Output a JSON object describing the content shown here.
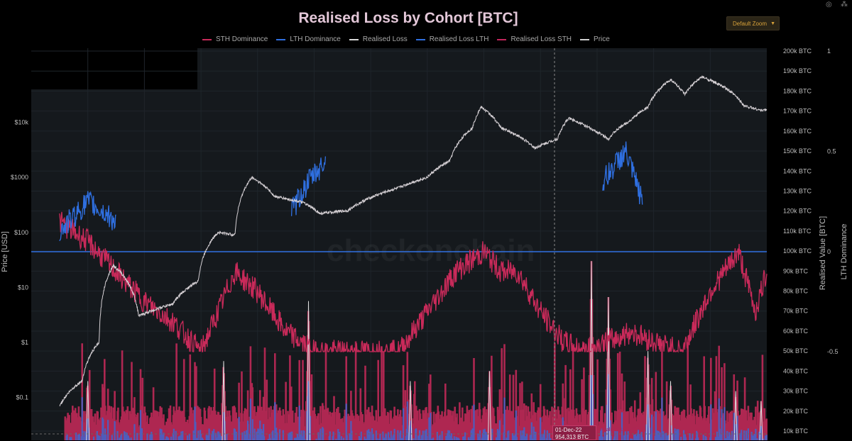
{
  "header": {
    "title": "Realised Loss by Cohort [BTC]",
    "zoom_label": "Default Zoom",
    "zoom_arrow": "▼"
  },
  "toolbar": {
    "icons": [
      "camera-icon",
      "plotly-logo-icon"
    ]
  },
  "legend": [
    {
      "label": "STH Dominance",
      "color": "#c92a5a"
    },
    {
      "label": "LTH Dominance",
      "color": "#2f6fe0"
    },
    {
      "label": "Realised Loss",
      "color": "#d8d8d8"
    },
    {
      "label": "Realised Loss LTH",
      "color": "#2f6fe0"
    },
    {
      "label": "Realised Loss STH",
      "color": "#c2255c"
    },
    {
      "label": "Price",
      "color": "#cfcfcf"
    }
  ],
  "axes": {
    "left_title": "Price [USD]",
    "left_ticks": [
      "$10k",
      "$1000",
      "$100",
      "$10",
      "$1",
      "$0.1"
    ],
    "right_title": "Realised Value [BTC]",
    "right_ticks": [
      "200k BTC",
      "190k BTC",
      "180k BTC",
      "170k BTC",
      "160k BTC",
      "150k BTC",
      "140k BTC",
      "130k BTC",
      "120k BTC",
      "110k BTC",
      "100k BTC",
      "90k BTC",
      "80k BTC",
      "70k BTC",
      "60k BTC",
      "50k BTC",
      "40k BTC",
      "30k BTC",
      "20k BTC",
      "10k BTC"
    ],
    "far_right_title": "LTH Dominance",
    "far_right_ticks": [
      "1",
      "0.5",
      "0",
      "-0.5"
    ]
  },
  "watermark": "checkonchain",
  "tooltip": {
    "date": "01-Dec-22",
    "value": "954,313 BTC",
    "series": "Realised Loss STH"
  },
  "colors": {
    "background": "#000000",
    "plot_bg": "#15191d",
    "sth": "#c92a5a",
    "lth": "#2f6fe0",
    "price": "#d4cfd3",
    "loss": "#e0e0e0"
  },
  "chart_data": {
    "type": "line",
    "title": "Realised Loss by Cohort [BTC]",
    "x_range": [
      "2010",
      "2023"
    ],
    "y_scales": {
      "price_usd": {
        "type": "log",
        "range": [
          0.1,
          100000
        ]
      },
      "realised_value_btc": {
        "type": "linear",
        "range": [
          10000,
          200000
        ]
      },
      "lth_dominance": {
        "type": "linear",
        "range": [
          -0.5,
          1
        ]
      }
    },
    "series": [
      {
        "name": "Price",
        "axis": "price_usd",
        "x": [
          2010.5,
          2010.9,
          2011.2,
          2011.45,
          2011.9,
          2012.5,
          2012.95,
          2013.3,
          2013.6,
          2013.9,
          2014.3,
          2014.8,
          2015.1,
          2015.6,
          2016.0,
          2016.5,
          2017.0,
          2017.4,
          2017.8,
          2017.95,
          2018.3,
          2018.9,
          2019.3,
          2019.5,
          2019.9,
          2020.2,
          2020.6,
          2020.9,
          2021.3,
          2021.55,
          2021.85,
          2022.3,
          2022.6,
          2022.9,
          2023.0
        ],
        "y": [
          0.07,
          0.2,
          1,
          25,
          3,
          5,
          13,
          100,
          90,
          1000,
          450,
          350,
          220,
          250,
          430,
          650,
          1000,
          2000,
          8000,
          19000,
          8000,
          3400,
          5000,
          12000,
          7500,
          5000,
          11000,
          19000,
          60000,
          32000,
          67000,
          40000,
          20000,
          16500,
          17000
        ]
      },
      {
        "name": "STH Dominance",
        "axis": "lth_dominance",
        "x": [
          2010.5,
          2011.0,
          2011.5,
          2012.0,
          2012.5,
          2013.0,
          2013.3,
          2013.6,
          2014.0,
          2014.5,
          2015.0,
          2015.5,
          2016.0,
          2016.5,
          2017.0,
          2017.5,
          2018.0,
          2018.3,
          2018.6,
          2019.0,
          2019.4,
          2019.8,
          2020.2,
          2020.6,
          2021.0,
          2021.5,
          2022.0,
          2022.5,
          2022.8,
          2023.0
        ],
        "y": [
          0.15,
          0.05,
          -0.1,
          -0.25,
          -0.35,
          -0.5,
          -0.3,
          -0.1,
          -0.2,
          -0.4,
          -0.5,
          -0.5,
          -0.5,
          -0.5,
          -0.3,
          -0.1,
          0,
          -0.1,
          -0.1,
          -0.3,
          -0.45,
          -0.5,
          -0.45,
          -0.4,
          -0.45,
          -0.5,
          -0.2,
          0,
          -0.3,
          -0.1
        ]
      },
      {
        "name": "LTH Dominance",
        "axis": "lth_dominance",
        "x": [
          2010.5,
          2011.0,
          2011.5,
          2014.6,
          2014.9,
          2015.2,
          2020.1,
          2020.5,
          2020.8
        ],
        "y": [
          0.1,
          0.25,
          0.15,
          0.2,
          0.35,
          0.45,
          0.35,
          0.5,
          0.25
        ]
      },
      {
        "name": "Realised Loss",
        "axis": "realised_value_btc",
        "x": [
          2011.0,
          2013.4,
          2014.9,
          2016.7,
          2018.1,
          2019.9,
          2020.2,
          2020.9,
          2021.3,
          2022.45,
          2022.9
        ],
        "y": [
          35000,
          45000,
          75000,
          35000,
          40000,
          95000,
          77000,
          50000,
          35000,
          30000,
          25000
        ]
      }
    ],
    "legend_position": "top",
    "grid": true
  }
}
